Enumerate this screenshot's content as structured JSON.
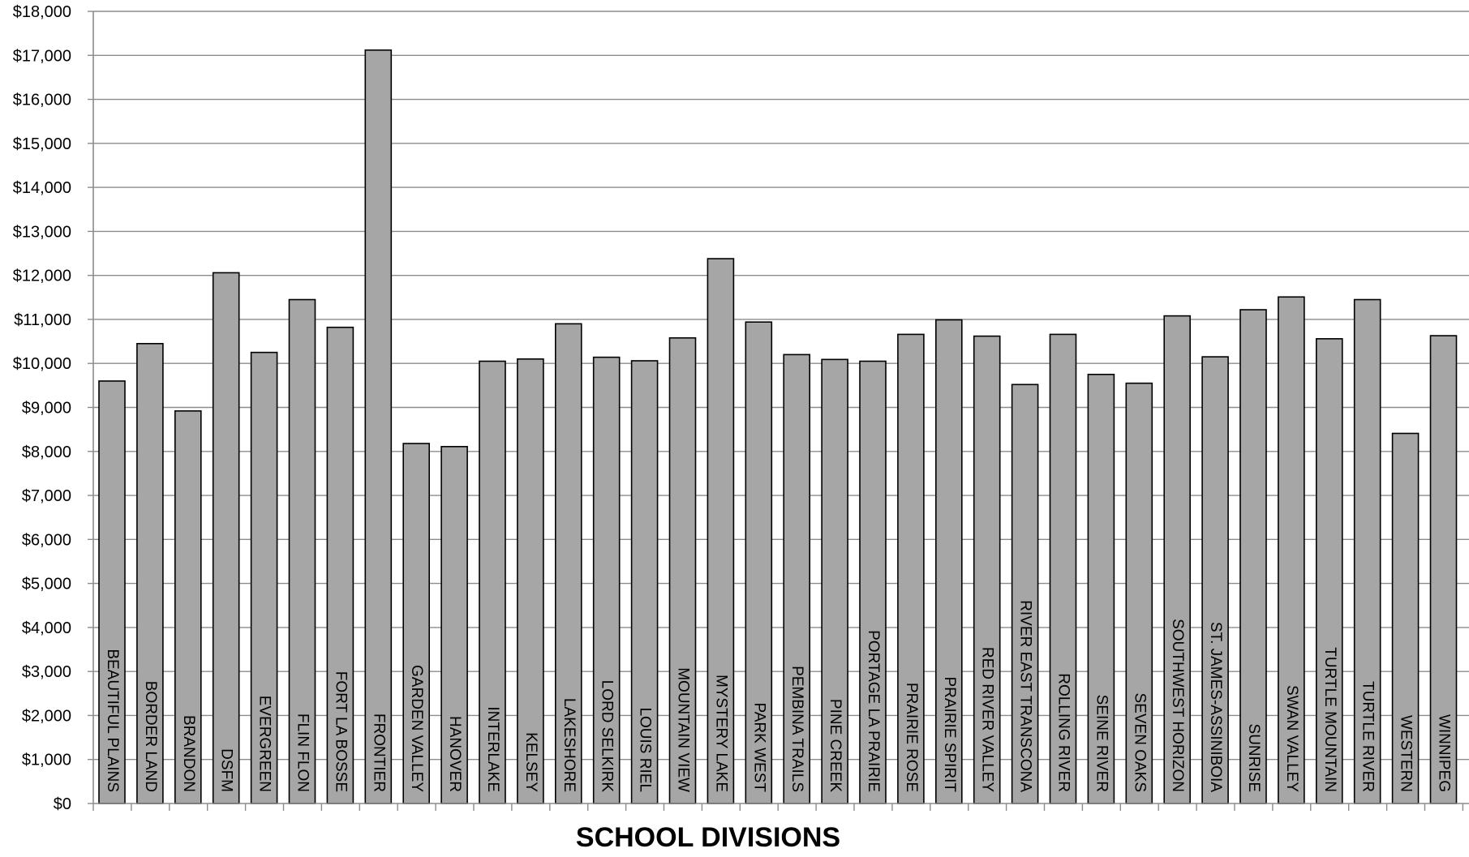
{
  "chart_data": {
    "type": "bar",
    "title": "",
    "xlabel": "SCHOOL DIVISIONS",
    "ylabel": "",
    "ylim": [
      0,
      18000
    ],
    "ytick_step": 1000,
    "yticks": [
      "$0",
      "$1,000",
      "$2,000",
      "$3,000",
      "$4,000",
      "$5,000",
      "$6,000",
      "$7,000",
      "$8,000",
      "$9,000",
      "$10,000",
      "$11,000",
      "$12,000",
      "$13,000",
      "$14,000",
      "$15,000",
      "$16,000",
      "$17,000",
      "$18,000"
    ],
    "grid": true,
    "legend": "none",
    "bar_color": "#a6a6a6",
    "bar_edge_color": "#000000",
    "grid_color": "#8c8c8c",
    "categories": [
      "BEAUTIFUL PLAINS",
      "BORDER LAND",
      "BRANDON",
      "DSFM",
      "EVERGREEN",
      "FLIN FLON",
      "FORT LA BOSSE",
      "FRONTIER",
      "GARDEN VALLEY",
      "HANOVER",
      "INTERLAKE",
      "KELSEY",
      "LAKESHORE",
      "LORD SELKIRK",
      "LOUIS RIEL",
      "MOUNTAIN VIEW",
      "MYSTERY LAKE",
      "PARK WEST",
      "PEMBINA TRAILS",
      "PINE CREEK",
      "PORTAGE LA PRAIRIE",
      "PRAIRIE ROSE",
      "PRAIRIE SPIRIT",
      "RED RIVER VALLEY",
      "RIVER EAST TRANSCONA",
      "ROLLING RIVER",
      "SEINE RIVER",
      "SEVEN OAKS",
      "SOUTHWEST HORIZON",
      "ST. JAMES-ASSINIBOIA",
      "SUNRISE",
      "SWAN VALLEY",
      "TURTLE MOUNTAIN",
      "TURTLE RIVER",
      "WESTERN",
      "WINNIPEG"
    ],
    "values": [
      9600,
      10450,
      8920,
      12060,
      10250,
      11450,
      10820,
      17120,
      8180,
      8110,
      10050,
      10100,
      10900,
      10140,
      10060,
      10580,
      12380,
      10940,
      10200,
      10090,
      10050,
      10660,
      10990,
      10620,
      9520,
      10660,
      9750,
      9550,
      11080,
      10150,
      11220,
      11510,
      10560,
      11450,
      8410,
      10630
    ]
  }
}
